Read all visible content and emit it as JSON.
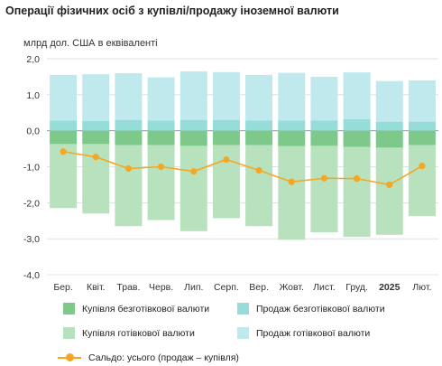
{
  "title": "Операції фізичних осіб з купівлі/продажу іноземної валюти",
  "chart_data": {
    "type": "bar",
    "ylabel": "млрд дол. США в еквіваленті",
    "ylim": [
      -4.0,
      2.0
    ],
    "yticks": [
      "2,0",
      "1,0",
      "0,0",
      "-1,0",
      "-2,0",
      "-3,0",
      "-4,0"
    ],
    "ytick_values": [
      2,
      1,
      0,
      -1,
      -2,
      -3,
      -4
    ],
    "grid": true,
    "legend_position": "bottom",
    "categories": [
      "Бер.",
      "Квіт.",
      "Трав.",
      "Черв.",
      "Лип.",
      "Серп.",
      "Вер.",
      "Жовт.",
      "Лист.",
      "Груд.",
      "2025",
      "Лют."
    ],
    "bold_categories": [
      "2025"
    ],
    "series": [
      {
        "name": "Купівля безготівкової валюти",
        "color": "#7dc98a",
        "values": [
          -0.37,
          -0.37,
          -0.4,
          -0.4,
          -0.42,
          -0.4,
          -0.4,
          -0.43,
          -0.42,
          -0.45,
          -0.47,
          -0.4
        ]
      },
      {
        "name": "Продаж безготівкової валюти",
        "color": "#96dcd8",
        "values": [
          0.28,
          0.27,
          0.3,
          0.28,
          0.3,
          0.3,
          0.28,
          0.28,
          0.28,
          0.32,
          0.25,
          0.25
        ]
      },
      {
        "name": "Купівля готівкової валюти",
        "color": "#b8e2bd",
        "values": [
          -1.78,
          -1.93,
          -2.25,
          -2.08,
          -2.37,
          -2.03,
          -2.25,
          -2.6,
          -2.4,
          -2.5,
          -2.42,
          -1.97
        ]
      },
      {
        "name": "Продаж готівкової валюти",
        "color": "#bfe9ec",
        "values": [
          1.27,
          1.3,
          1.3,
          1.2,
          1.35,
          1.33,
          1.27,
          1.33,
          1.22,
          1.3,
          1.13,
          1.15
        ]
      },
      {
        "name": "Сальдо: усього (продаж – купівля)",
        "color": "#f5a623",
        "type": "line",
        "values": [
          -0.58,
          -0.73,
          -1.05,
          -1.0,
          -1.13,
          -0.8,
          -1.1,
          -1.42,
          -1.32,
          -1.33,
          -1.5,
          -0.98
        ]
      }
    ]
  }
}
